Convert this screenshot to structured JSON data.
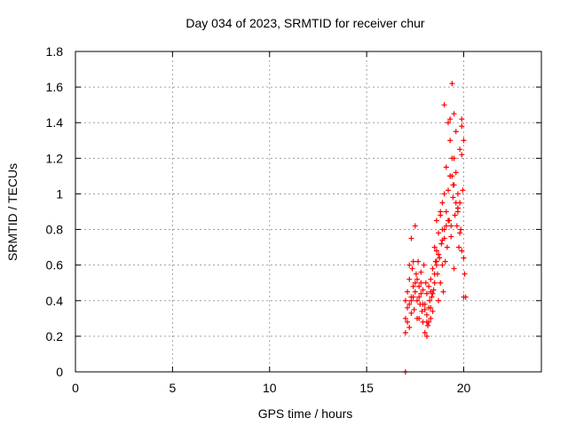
{
  "chart_data": {
    "type": "scatter",
    "title": "Day 034 of 2023, SRMTID for receiver chur",
    "xlabel": "GPS time / hours",
    "ylabel": "SRMTID / TECUs",
    "xlim": [
      0,
      24
    ],
    "ylim": [
      0,
      1.8
    ],
    "xticks": [
      0,
      5,
      10,
      15,
      20
    ],
    "xtick_labels": [
      "0",
      "5",
      "10",
      "15",
      "20"
    ],
    "yticks": [
      0,
      0.2,
      0.4,
      0.6,
      0.8,
      1.0,
      1.2,
      1.4,
      1.6,
      1.8
    ],
    "ytick_labels": [
      "0",
      "0.2",
      "0.4",
      "0.6",
      "0.8",
      "1",
      "1.2",
      "1.4",
      "1.6",
      "1.8"
    ],
    "grid": true,
    "marker": "+",
    "color": "#ff0000",
    "series": [
      {
        "name": "SRMTID",
        "x": [
          17.0,
          17.0,
          17.0,
          17.0,
          17.1,
          17.1,
          17.1,
          17.2,
          17.2,
          17.2,
          17.3,
          17.3,
          17.3,
          17.35,
          17.4,
          17.4,
          17.45,
          17.5,
          17.5,
          17.55,
          17.6,
          17.6,
          17.65,
          17.7,
          17.7,
          17.75,
          17.8,
          17.8,
          17.85,
          17.9,
          17.9,
          17.95,
          18.0,
          18.0,
          18.05,
          18.1,
          18.1,
          18.15,
          18.2,
          18.2,
          18.25,
          18.3,
          18.3,
          18.35,
          18.4,
          18.4,
          18.45,
          18.5,
          18.5,
          18.55,
          18.6,
          18.6,
          18.65,
          18.7,
          18.7,
          18.75,
          18.8,
          18.8,
          18.85,
          18.9,
          18.9,
          18.95,
          19.0,
          19.0,
          19.05,
          19.1,
          19.1,
          19.15,
          19.2,
          19.2,
          19.25,
          19.3,
          19.3,
          19.35,
          19.4,
          19.4,
          19.45,
          19.5,
          19.5,
          19.55,
          19.6,
          19.6,
          19.65,
          19.7,
          19.7,
          19.75,
          19.8,
          19.8,
          19.85,
          19.9,
          19.9,
          19.95,
          20.0,
          20.0,
          20.05,
          20.1,
          17.2,
          17.4,
          17.6,
          17.8,
          18.0,
          18.2,
          18.4,
          18.6,
          18.8,
          19.0,
          19.2,
          19.4,
          19.6,
          19.8,
          20.0,
          17.3,
          17.5,
          17.7,
          17.9,
          18.1,
          18.3,
          18.5,
          18.7,
          18.9,
          19.1,
          19.3,
          19.5,
          19.7,
          19.9,
          18.1,
          18.3,
          18.6,
          19.0,
          19.3,
          19.5,
          19.7,
          19.9,
          19.35,
          19.45,
          18.9
        ],
        "y": [
          0.0,
          0.22,
          0.3,
          0.4,
          0.28,
          0.36,
          0.45,
          0.52,
          0.6,
          0.38,
          0.75,
          0.42,
          0.33,
          0.58,
          0.48,
          0.62,
          0.35,
          0.82,
          0.45,
          0.55,
          0.4,
          0.52,
          0.62,
          0.3,
          0.48,
          0.38,
          0.56,
          0.44,
          0.34,
          0.28,
          0.46,
          0.6,
          0.22,
          0.38,
          0.5,
          0.32,
          0.44,
          0.26,
          0.36,
          0.48,
          0.4,
          0.3,
          0.52,
          0.42,
          0.34,
          0.58,
          0.46,
          0.7,
          0.5,
          0.62,
          0.85,
          0.68,
          0.55,
          0.78,
          0.4,
          0.64,
          0.88,
          0.5,
          0.72,
          0.6,
          0.95,
          0.45,
          1.0,
          0.8,
          0.62,
          1.15,
          0.9,
          0.7,
          1.4,
          1.02,
          0.85,
          1.3,
          1.1,
          0.76,
          1.62,
          1.2,
          0.98,
          1.45,
          1.05,
          0.88,
          1.35,
          1.12,
          0.82,
          1.0,
          0.92,
          0.7,
          1.25,
          0.95,
          0.8,
          0.68,
          1.42,
          1.02,
          1.3,
          0.64,
          0.55,
          0.42,
          0.25,
          0.42,
          0.3,
          0.5,
          0.35,
          0.28,
          0.44,
          0.6,
          0.9,
          0.75,
          0.85,
          1.1,
          0.95,
          0.78,
          0.42,
          0.4,
          0.5,
          0.42,
          0.38,
          0.28,
          0.36,
          0.55,
          0.66,
          0.74,
          0.82,
          1.42,
          1.2,
          0.9,
          1.38,
          0.2,
          0.45,
          0.62,
          1.5,
          1.1,
          0.58,
          0.92,
          1.22,
          0.82,
          1.05,
          0.8
        ]
      }
    ]
  }
}
